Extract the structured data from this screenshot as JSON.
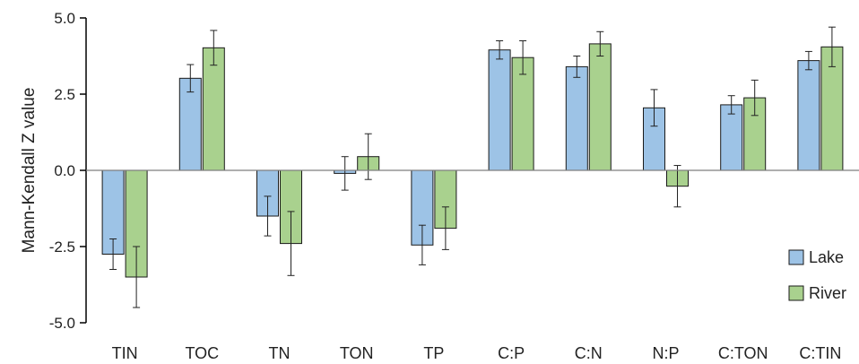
{
  "chart_data": {
    "type": "bar",
    "title": "",
    "xlabel": "",
    "ylabel": "Mann-Kendall Z value",
    "ylim": [
      -5.0,
      5.0
    ],
    "yticks": [
      -5.0,
      -2.5,
      0.0,
      2.5,
      5.0
    ],
    "ytick_labels": [
      "-5.0",
      "-2.5",
      "0.0",
      "2.5",
      "5.0"
    ],
    "grid": false,
    "legend_position": "bottom-right",
    "categories": [
      "TIN",
      "TOC",
      "TN",
      "TON",
      "TP",
      "C:P",
      "C:N",
      "N:P",
      "C:TON",
      "C:TIN"
    ],
    "series": [
      {
        "name": "Lake",
        "color": "#9DC3E6",
        "values": [
          -2.75,
          3.02,
          -1.5,
          -0.1,
          -2.45,
          3.95,
          3.4,
          2.05,
          2.15,
          3.6
        ],
        "errors": [
          0.5,
          0.45,
          0.65,
          0.55,
          0.65,
          0.3,
          0.35,
          0.6,
          0.3,
          0.3
        ]
      },
      {
        "name": "River",
        "color": "#A9D18E",
        "values": [
          -3.5,
          4.02,
          -2.4,
          0.45,
          -1.9,
          3.7,
          4.15,
          -0.52,
          2.38,
          4.05
        ],
        "errors": [
          1.0,
          0.57,
          1.05,
          0.75,
          0.7,
          0.55,
          0.4,
          0.68,
          0.58,
          0.65
        ]
      }
    ]
  }
}
